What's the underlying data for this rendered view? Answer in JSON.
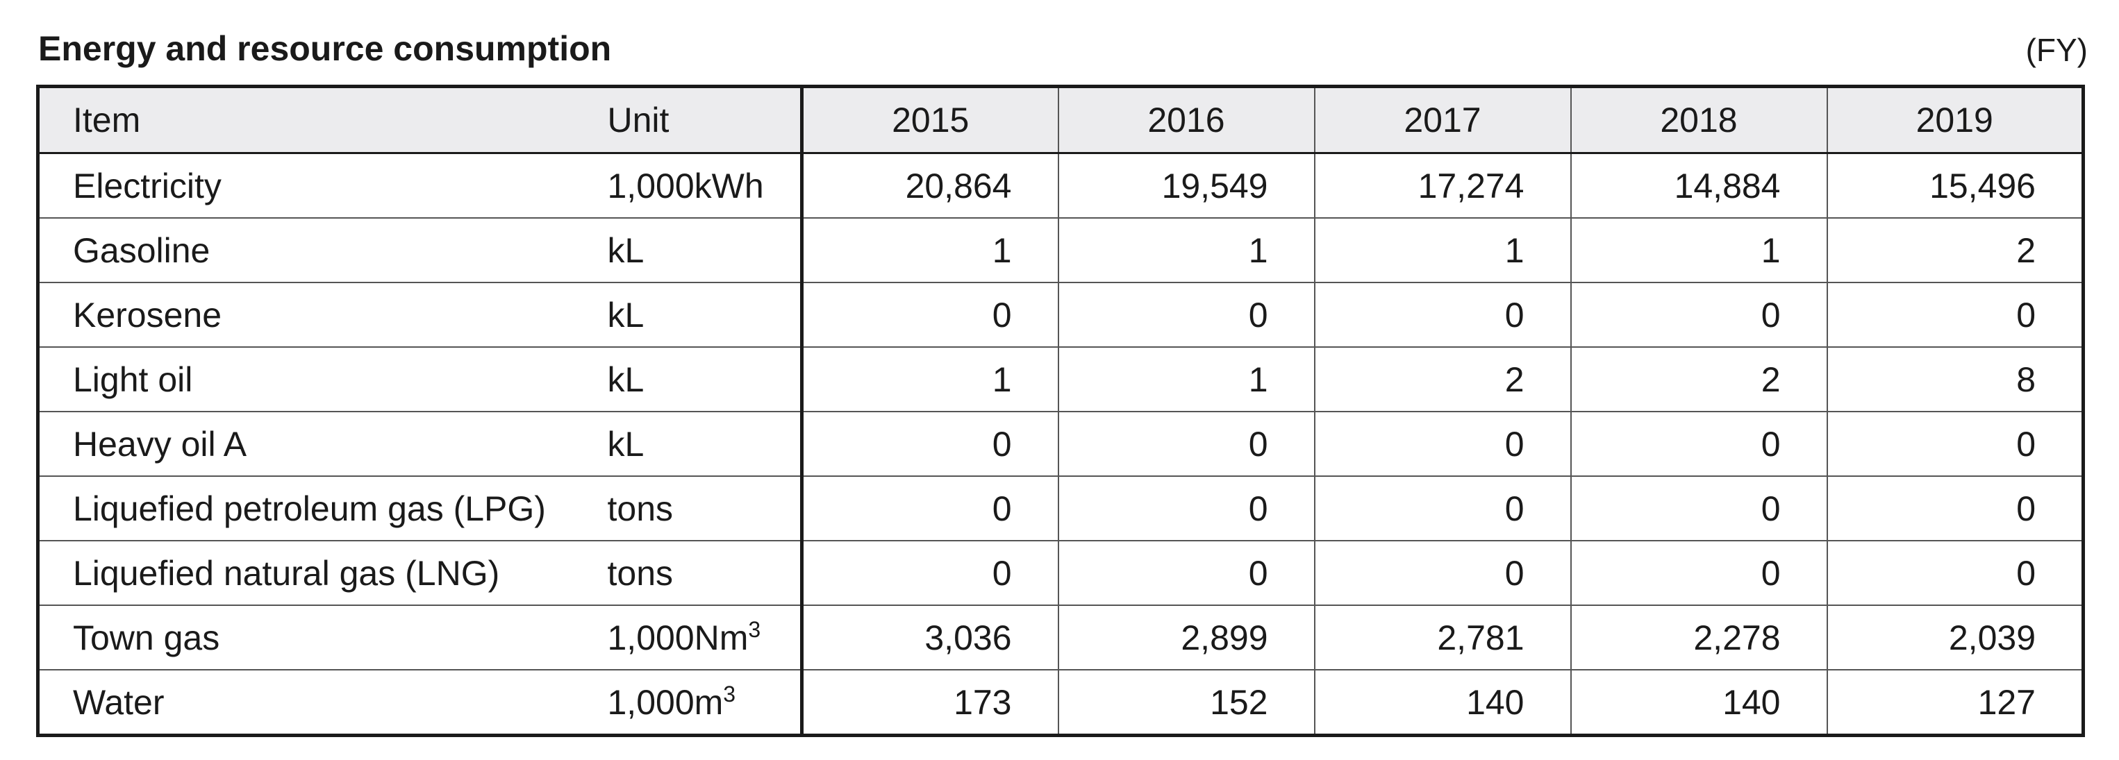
{
  "title": "Energy and resource consumption",
  "period_note": "(FY)",
  "table": {
    "header": {
      "item": "Item",
      "unit": "Unit",
      "years": [
        "2015",
        "2016",
        "2017",
        "2018",
        "2019"
      ]
    },
    "rows": [
      {
        "item": "Electricity",
        "unit_base": "1,000kWh",
        "unit_sup": "",
        "values": [
          "20,864",
          "19,549",
          "17,274",
          "14,884",
          "15,496"
        ]
      },
      {
        "item": "Gasoline",
        "unit_base": "kL",
        "unit_sup": "",
        "values": [
          "1",
          "1",
          "1",
          "1",
          "2"
        ]
      },
      {
        "item": "Kerosene",
        "unit_base": "kL",
        "unit_sup": "",
        "values": [
          "0",
          "0",
          "0",
          "0",
          "0"
        ]
      },
      {
        "item": "Light oil",
        "unit_base": "kL",
        "unit_sup": "",
        "values": [
          "1",
          "1",
          "2",
          "2",
          "8"
        ]
      },
      {
        "item": "Heavy oil A",
        "unit_base": "kL",
        "unit_sup": "",
        "values": [
          "0",
          "0",
          "0",
          "0",
          "0"
        ]
      },
      {
        "item": "Liquefied petroleum gas (LPG)",
        "unit_base": "tons",
        "unit_sup": "",
        "values": [
          "0",
          "0",
          "0",
          "0",
          "0"
        ]
      },
      {
        "item": "Liquefied natural gas (LNG)",
        "unit_base": "tons",
        "unit_sup": "",
        "values": [
          "0",
          "0",
          "0",
          "0",
          "0"
        ]
      },
      {
        "item": "Town gas",
        "unit_base": "1,000Nm",
        "unit_sup": "3",
        "values": [
          "3,036",
          "2,899",
          "2,781",
          "2,278",
          "2,039"
        ]
      },
      {
        "item": "Water",
        "unit_base": "1,000m",
        "unit_sup": "3",
        "values": [
          "173",
          "152",
          "140",
          "140",
          "127"
        ]
      }
    ]
  }
}
